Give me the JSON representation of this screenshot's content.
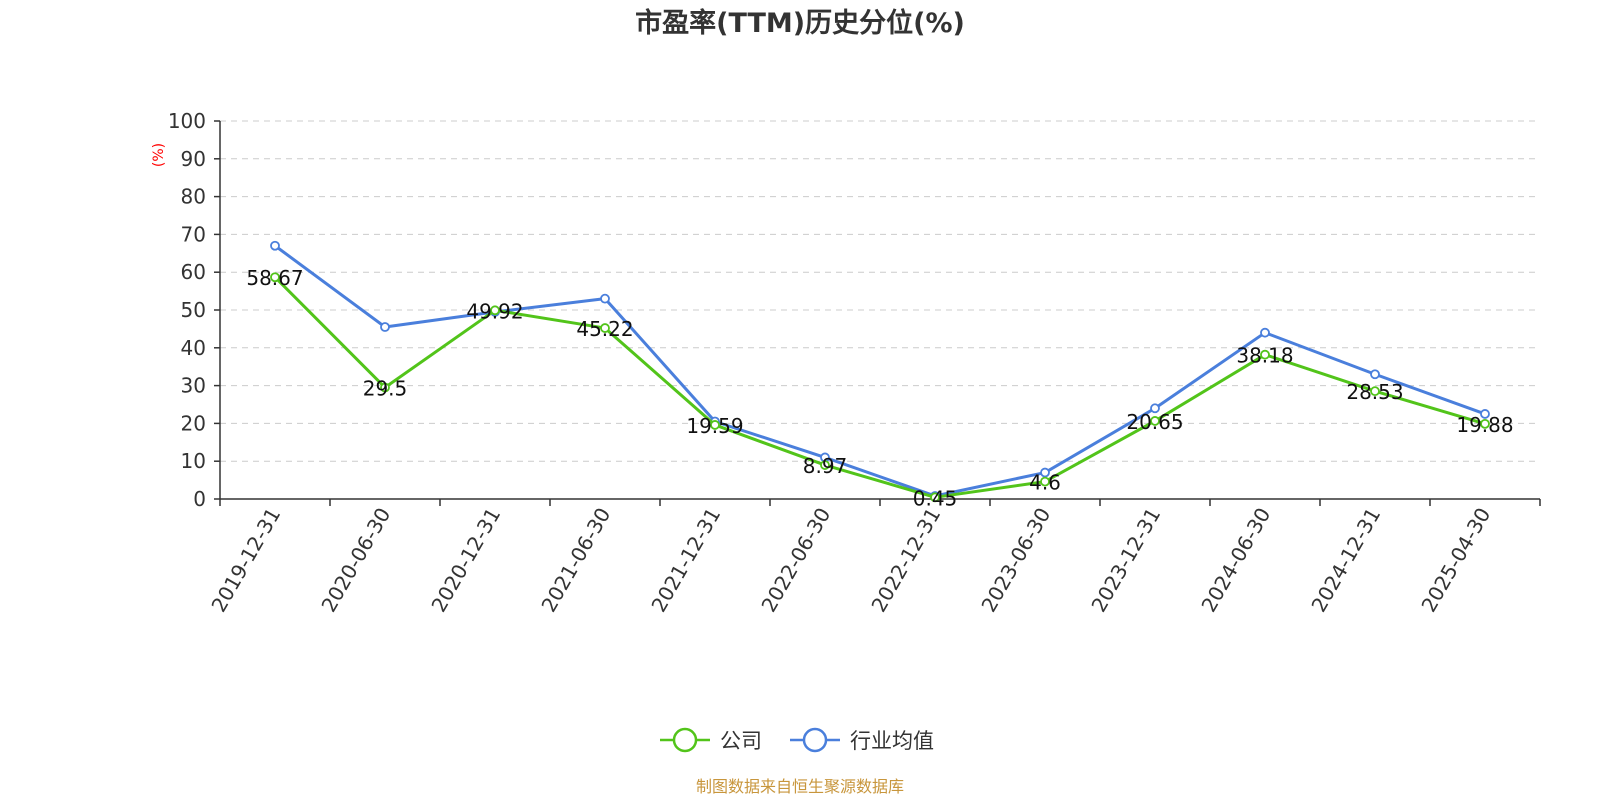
{
  "chart_data": {
    "type": "line",
    "title": "市盈率(TTM)历史分位(%)",
    "ylabel": "(%)",
    "xlabel": "",
    "ylim": [
      0,
      100
    ],
    "yticks": [
      0,
      10,
      20,
      30,
      40,
      50,
      60,
      70,
      80,
      90,
      100
    ],
    "categories": [
      "2019-12-31",
      "2020-06-30",
      "2020-12-31",
      "2021-06-30",
      "2021-12-31",
      "2022-06-30",
      "2022-12-31",
      "2023-06-30",
      "2023-12-31",
      "2024-06-30",
      "2024-12-31",
      "2025-04-30"
    ],
    "series": [
      {
        "name": "公司",
        "color": "#52c41a",
        "values": [
          58.67,
          29.5,
          49.92,
          45.22,
          19.59,
          8.97,
          0.45,
          4.6,
          20.65,
          38.18,
          28.53,
          19.88
        ],
        "labels": [
          "58.67",
          "29.5",
          "49.92",
          "45.22",
          "19.59",
          "8.97",
          "0.45",
          "4.6",
          "20.65",
          "38.18",
          "28.53",
          "19.88"
        ]
      },
      {
        "name": "行业均值",
        "color": "#4a7fdc",
        "values": [
          67,
          45.5,
          49.5,
          53,
          20.5,
          11,
          0.8,
          7,
          24,
          44,
          33,
          22.5
        ]
      }
    ],
    "grid": true,
    "legend_position": "bottom-center",
    "ylabel_color": "#ff0000"
  },
  "source_text": "制图数据来自恒生聚源数据库",
  "source_color": "#c8963c"
}
